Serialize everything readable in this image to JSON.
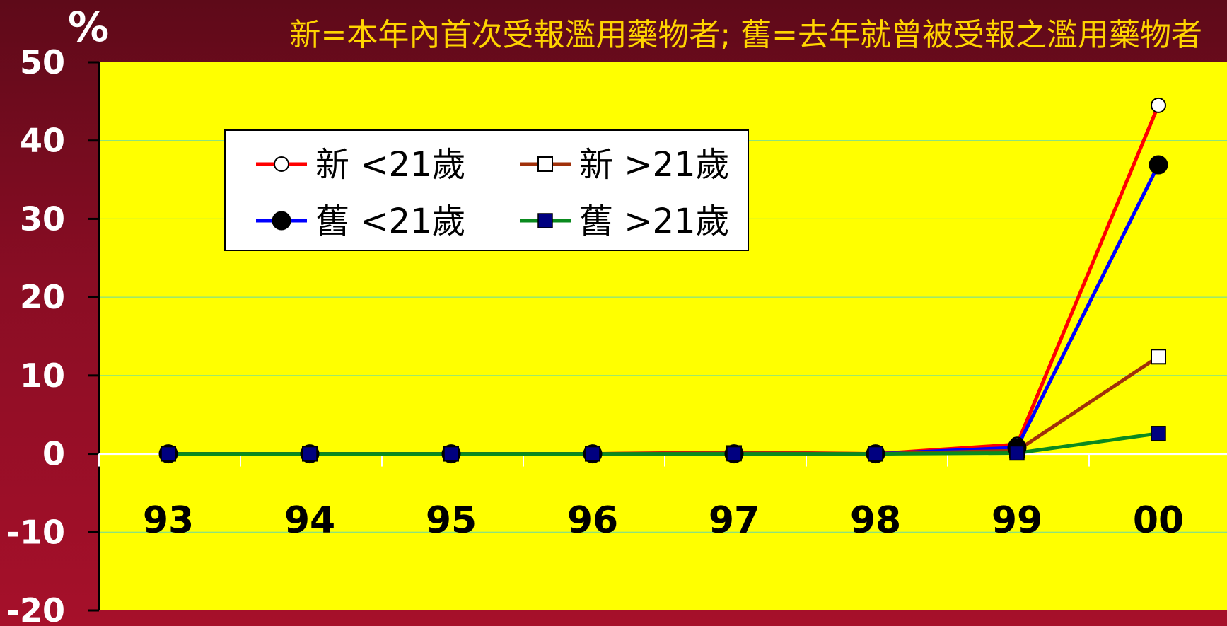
{
  "chart_data": {
    "type": "line",
    "subtitle": "新=本年內首次受報濫用藥物者; 舊=去年就曾被受報之濫用藥物者",
    "ylabel": "%",
    "ylim": [
      -20,
      50
    ],
    "yticks": [
      "50",
      "40",
      "30",
      "20",
      "10",
      "0",
      "-10",
      "-20"
    ],
    "categories": [
      "93",
      "94",
      "95",
      "96",
      "97",
      "98",
      "99",
      "00"
    ],
    "grid": true,
    "legend_position": "upper-left",
    "colors": {
      "plot_bg": "#ffff00",
      "grid": "#66d9a6"
    },
    "series": [
      {
        "name": "新 <21歲",
        "color": "#ff0000",
        "marker": "circle-open",
        "values": [
          0,
          0,
          0,
          0,
          0.2,
          0,
          1.2,
          44.5
        ]
      },
      {
        "name": "新 >21歲",
        "color": "#a0300a",
        "marker": "square-open",
        "values": [
          0,
          0,
          0,
          0,
          0.1,
          0,
          0.4,
          12.4
        ]
      },
      {
        "name": "舊 <21歲",
        "color": "#0000ff",
        "marker": "circle-filled",
        "values": [
          0,
          0,
          0,
          0,
          0,
          0,
          0.8,
          36.9
        ]
      },
      {
        "name": "舊 >21歲",
        "color": "#0a8a1e",
        "marker": "square-filled",
        "values": [
          0,
          0,
          0,
          0,
          0,
          0,
          0.1,
          2.6
        ]
      }
    ]
  }
}
